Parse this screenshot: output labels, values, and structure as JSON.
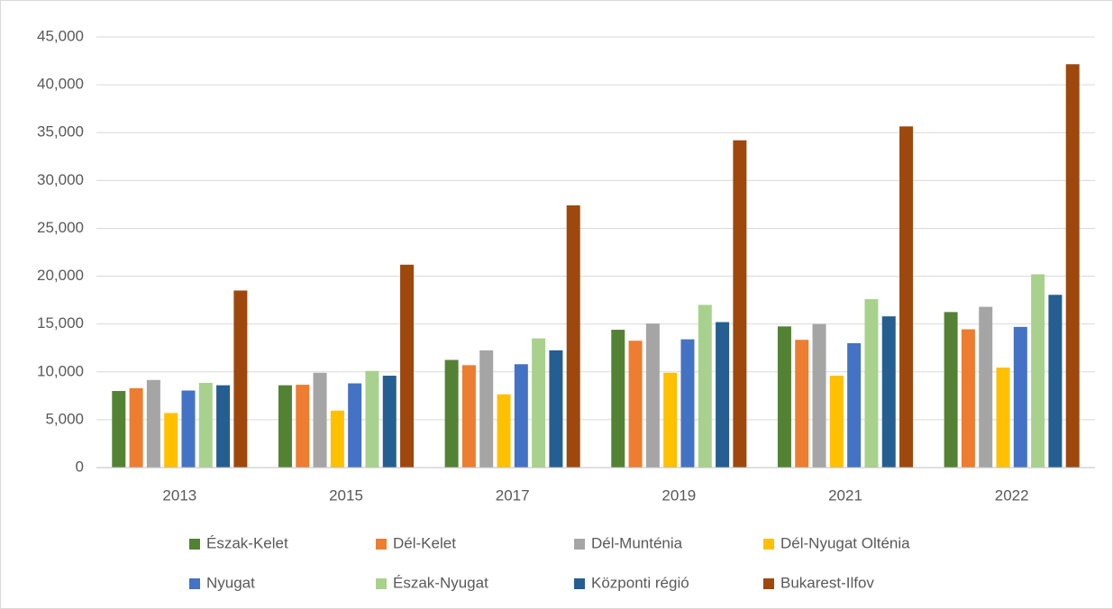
{
  "chart_data": {
    "type": "bar",
    "categories": [
      "2013",
      "2015",
      "2017",
      "2019",
      "2021",
      "2022"
    ],
    "series": [
      {
        "name": "Észak-Kelet",
        "color": "#548235",
        "values": [
          8000,
          8600,
          11250,
          14400,
          14750,
          16250
        ]
      },
      {
        "name": "Dél-Kelet",
        "color": "#ed7d31",
        "values": [
          8300,
          8650,
          10700,
          13250,
          13350,
          14450
        ]
      },
      {
        "name": "Dél-Munténia",
        "color": "#a5a5a5",
        "values": [
          9150,
          9900,
          12250,
          15050,
          15000,
          16800
        ]
      },
      {
        "name": "Dél-Nyugat Olténia",
        "color": "#ffc000",
        "values": [
          5700,
          5950,
          7650,
          9900,
          9600,
          10450
        ]
      },
      {
        "name": "Nyugat",
        "color": "#4472c4",
        "values": [
          8050,
          8800,
          10800,
          13400,
          13000,
          14700
        ]
      },
      {
        "name": "Észak-Nyugat",
        "color": "#a9d18e",
        "values": [
          8850,
          10100,
          13500,
          17000,
          17600,
          20200
        ]
      },
      {
        "name": "Központi régió",
        "color": "#255e91",
        "values": [
          8600,
          9600,
          12250,
          15200,
          15800,
          18050
        ]
      },
      {
        "name": "Bukarest-Ilfov",
        "color": "#9e480e",
        "values": [
          18500,
          21200,
          27400,
          34200,
          35650,
          42150
        ]
      }
    ],
    "ylim": [
      0,
      45000
    ],
    "yticks": [
      0,
      {
        "value": 5000,
        "label": "5,000"
      },
      {
        "value": 10000,
        "label": "10,000"
      },
      {
        "value": 15000,
        "label": "15,000"
      },
      {
        "value": 20000,
        "label": "20,000"
      },
      {
        "value": 25000,
        "label": "25,000"
      },
      {
        "value": 30000,
        "label": "30,000"
      },
      {
        "value": 35000,
        "label": "35,000"
      },
      {
        "value": 40000,
        "label": "40,000"
      },
      {
        "value": 45000,
        "label": "45,000"
      }
    ],
    "grid": true,
    "legend": "bottom"
  }
}
